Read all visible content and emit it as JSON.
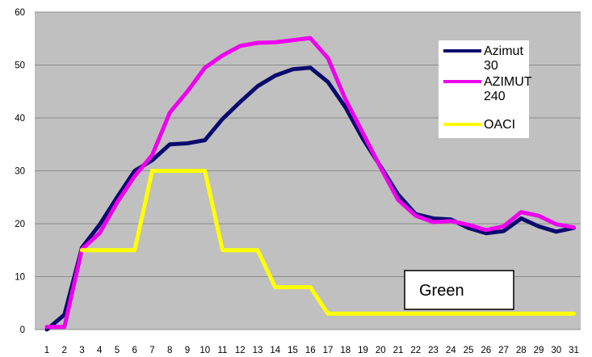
{
  "chart_data": {
    "type": "line",
    "title": "",
    "xlabel": "",
    "ylabel": "",
    "ylim": [
      0,
      60
    ],
    "yticks": [
      0,
      10,
      20,
      30,
      40,
      50,
      60
    ],
    "x": [
      1,
      2,
      3,
      4,
      5,
      6,
      7,
      8,
      9,
      10,
      11,
      12,
      13,
      14,
      15,
      16,
      17,
      18,
      19,
      20,
      21,
      22,
      23,
      24,
      25,
      26,
      27,
      28,
      29,
      30,
      31
    ],
    "grid": "horizontal",
    "legend_position": "top-right",
    "series": [
      {
        "name": "Azimut 30",
        "label_lines": [
          "Azimut",
          "30"
        ],
        "color": "#0b0b6e",
        "values": [
          0,
          2.8,
          15.5,
          19.8,
          25,
          30,
          32,
          35,
          35.2,
          35.8,
          39.8,
          43,
          46,
          48,
          49.2,
          49.5,
          46.8,
          42,
          36,
          30.8,
          25.5,
          21.8,
          21,
          20.8,
          19.2,
          18.2,
          18.6,
          21,
          19.5,
          18.5,
          19.2
        ]
      },
      {
        "name": "AZIMUT 240",
        "label_lines": [
          "AZIMUT",
          "240"
        ],
        "color": "#ee00ee",
        "values": [
          0.5,
          0.5,
          15.2,
          18.2,
          24,
          29,
          33,
          41,
          45,
          49.5,
          51.8,
          53.6,
          54.2,
          54.3,
          54.7,
          55.1,
          51.3,
          43.5,
          37.1,
          30.6,
          24.5,
          21.5,
          20.3,
          20.5,
          19.8,
          18.8,
          19.5,
          22.2,
          21.5,
          19.9,
          19.3
        ]
      },
      {
        "name": "OACI",
        "label_lines": [
          "OACI"
        ],
        "color": "#ffff00",
        "values": [
          null,
          null,
          15,
          15,
          15,
          15,
          30,
          30,
          30,
          30,
          15,
          15,
          15,
          8,
          8,
          8,
          3,
          3,
          3,
          3,
          3,
          3,
          3,
          3,
          3,
          3,
          3,
          3,
          3,
          3,
          3
        ]
      }
    ],
    "annotation": {
      "text": "Green"
    },
    "colors": {
      "plot_background": "#c0c0c0",
      "gridline": "#8c8c8c"
    }
  }
}
